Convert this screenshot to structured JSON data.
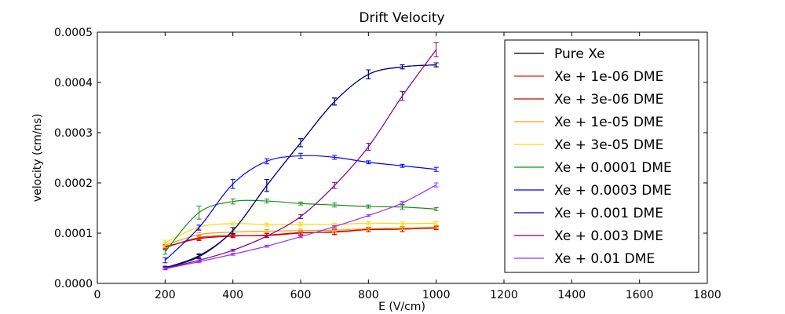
{
  "chart_data": {
    "type": "line",
    "title": "Drift Velocity",
    "xlabel": "E (V/cm)",
    "ylabel": "velocity (cm/ns)",
    "xlim": [
      0,
      1800
    ],
    "ylim": [
      0,
      0.0005
    ],
    "xticks": [
      0,
      200,
      400,
      600,
      800,
      1000,
      1200,
      1400,
      1600,
      1800
    ],
    "xtick_labels": [
      "0",
      "200",
      "400",
      "600",
      "800",
      "1000",
      "1200",
      "1400",
      "1600",
      "1800"
    ],
    "yticks": [
      0,
      0.0001,
      0.0002,
      0.0003,
      0.0004,
      0.0005
    ],
    "ytick_labels": [
      "0.0000",
      "0.0001",
      "0.0002",
      "0.0003",
      "0.0004",
      "0.0005"
    ],
    "grid": false,
    "legend_position": "right",
    "x": [
      200,
      300,
      400,
      500,
      600,
      700,
      800,
      900,
      1000
    ],
    "series": [
      {
        "name": "Pure Xe",
        "color": "#000000",
        "values": [
          3.1e-05,
          5.5e-05,
          0.000105,
          0.000195,
          0.00028,
          0.000362,
          0.000416,
          0.000431,
          0.000435
        ],
        "errors": [
          3e-06,
          4e-06,
          6e-06,
          1.2e-05,
          8e-06,
          7e-06,
          9e-06,
          4e-06,
          4e-06
        ]
      },
      {
        "name": "Xe + 1e-06 DME",
        "color": "#e41a1c",
        "values": [
          7.1e-05,
          9.1e-05,
          9.5e-05,
          9.5e-05,
          0.0001,
          0.000103,
          0.000107,
          0.000108,
          0.00011
        ],
        "errors": [
          4e-06,
          4e-06,
          3e-06,
          4e-06,
          4e-06,
          5e-06,
          4e-06,
          5e-06,
          3e-06
        ]
      },
      {
        "name": "Xe + 3e-06 DME",
        "color": "#c80000",
        "values": [
          7.3e-05,
          8.9e-05,
          9.4e-05,
          9.6e-05,
          0.000101,
          0.000102,
          0.000107,
          0.000108,
          0.000111
        ],
        "errors": [
          4e-06,
          4e-06,
          3e-06,
          4e-06,
          4e-06,
          5e-06,
          4e-06,
          5e-06,
          3e-06
        ]
      },
      {
        "name": "Xe + 1e-05 DME",
        "color": "#f5a100",
        "values": [
          7.6e-05,
          9.7e-05,
          0.000102,
          0.000104,
          0.000105,
          0.000106,
          0.000109,
          0.00011,
          0.000112
        ],
        "errors": [
          5e-06,
          4e-06,
          3e-06,
          3e-06,
          3e-06,
          3e-06,
          3e-06,
          3e-06,
          3e-06
        ]
      },
      {
        "name": "Xe + 3e-05 DME",
        "color": "#ffd700",
        "values": [
          8.1e-05,
          0.000112,
          0.000119,
          0.000117,
          0.000118,
          0.000117,
          0.00012,
          0.000119,
          0.00012
        ],
        "errors": [
          5e-06,
          4e-06,
          3e-06,
          3e-06,
          3e-06,
          3e-06,
          3e-06,
          3e-06,
          3e-06
        ]
      },
      {
        "name": "Xe + 0.0001 DME",
        "color": "#1a8c1a",
        "values": [
          6.3e-05,
          0.000141,
          0.000163,
          0.000164,
          0.000159,
          0.000156,
          0.000153,
          0.000152,
          0.000148
        ],
        "errors": [
          5e-06,
          1.3e-05,
          5e-06,
          4e-06,
          3e-06,
          4e-06,
          3e-06,
          4e-06,
          3e-06
        ]
      },
      {
        "name": "Xe + 0.0003 DME",
        "color": "#0000ff",
        "values": [
          4.6e-05,
          0.000111,
          0.000198,
          0.000243,
          0.000254,
          0.000251,
          0.000241,
          0.000234,
          0.000227
        ],
        "errors": [
          5e-06,
          5e-06,
          9e-06,
          5e-06,
          5e-06,
          4e-06,
          3e-06,
          3e-06,
          4e-06
        ]
      },
      {
        "name": "Xe + 0.001 DME",
        "color": "#00008b",
        "values": [
          3.1e-05,
          5.3e-05,
          0.000105,
          0.000195,
          0.00028,
          0.000362,
          0.000416,
          0.000431,
          0.000435
        ],
        "errors": [
          3e-06,
          4e-06,
          6e-06,
          1.2e-05,
          8e-06,
          7e-06,
          9e-06,
          4e-06,
          4e-06
        ]
      },
      {
        "name": "Xe + 0.003 DME",
        "color": "#800080",
        "values": [
          3e-05,
          4.6e-05,
          6.6e-05,
          9.4e-05,
          0.000133,
          0.000195,
          0.000272,
          0.000373,
          0.000465
        ],
        "errors": [
          2e-06,
          3e-06,
          2e-06,
          2e-06,
          4e-06,
          6e-06,
          7e-06,
          9e-06,
          1.4e-05
        ]
      },
      {
        "name": "Xe + 0.01 DME",
        "color": "#9b30ff",
        "values": [
          2.9e-05,
          4.3e-05,
          5.8e-05,
          7.4e-05,
          9.3e-05,
          0.000113,
          0.000135,
          0.00016,
          0.000196
        ],
        "errors": [
          2e-06,
          2e-06,
          2e-06,
          2e-06,
          2e-06,
          2e-06,
          2e-06,
          3e-06,
          4e-06
        ]
      }
    ]
  }
}
